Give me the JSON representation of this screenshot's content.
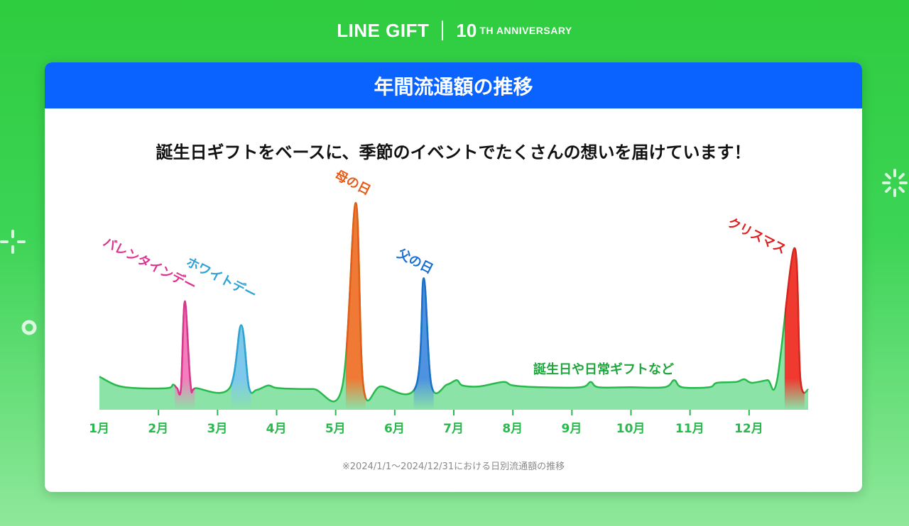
{
  "header": {
    "brand": "LINE GIFT",
    "anniversary_num": "10",
    "anniversary_text": "TH ANNIVERSARY"
  },
  "card": {
    "title": "年間流通額の推移",
    "subtitle": "誕生日ギフトをベースに、季節のイベントでたくさんの想いを届けています！",
    "note": "※2024/1/1～2024/12/31における日別流通額の推移"
  },
  "chart_data": {
    "type": "area",
    "title": "年間流通額の推移",
    "x_ticks": [
      "1月",
      "2月",
      "3月",
      "4月",
      "5月",
      "6月",
      "7月",
      "8月",
      "9月",
      "10月",
      "11月",
      "12月"
    ],
    "xlim": [
      "2024-01-01",
      "2024-12-31"
    ],
    "y_axis_shown": false,
    "series_points": [
      [
        "2024-01-01",
        15
      ],
      [
        "2024-01-10",
        5
      ],
      [
        "2024-01-20",
        2
      ],
      [
        "2024-02-05",
        2
      ],
      [
        "2024-02-08",
        6
      ],
      [
        "2024-02-10",
        2
      ],
      [
        "2024-02-12",
        2
      ],
      [
        "2024-02-14",
        100
      ],
      [
        "2024-02-17",
        5
      ],
      [
        "2024-02-20",
        2
      ],
      [
        "2024-03-08",
        2
      ],
      [
        "2024-03-14",
        73
      ],
      [
        "2024-03-18",
        3
      ],
      [
        "2024-03-22",
        0
      ],
      [
        "2024-03-28",
        5
      ],
      [
        "2024-04-02",
        2
      ],
      [
        "2024-04-20",
        1
      ],
      [
        "2024-05-05",
        3
      ],
      [
        "2024-05-12",
        211
      ],
      [
        "2024-05-16",
        3
      ],
      [
        "2024-05-25",
        4
      ],
      [
        "2024-06-12",
        4
      ],
      [
        "2024-06-16",
        126
      ],
      [
        "2024-06-20",
        5
      ],
      [
        "2024-06-28",
        6
      ],
      [
        "2024-07-03",
        11
      ],
      [
        "2024-07-06",
        5
      ],
      [
        "2024-07-15",
        4
      ],
      [
        "2024-07-27",
        9
      ],
      [
        "2024-08-01",
        5
      ],
      [
        "2024-08-15",
        3
      ],
      [
        "2024-09-05",
        3
      ],
      [
        "2024-09-10",
        9
      ],
      [
        "2024-09-14",
        3
      ],
      [
        "2024-09-30",
        3
      ],
      [
        "2024-10-18",
        3
      ],
      [
        "2024-10-23",
        11
      ],
      [
        "2024-10-27",
        3
      ],
      [
        "2024-11-10",
        3
      ],
      [
        "2024-11-14",
        8
      ],
      [
        "2024-11-24",
        9
      ],
      [
        "2024-11-28",
        12
      ],
      [
        "2024-12-02",
        8
      ],
      [
        "2024-12-10",
        11
      ],
      [
        "2024-12-15",
        11
      ],
      [
        "2024-12-24",
        160
      ],
      [
        "2024-12-27",
        12
      ],
      [
        "2024-12-31",
        0
      ]
    ],
    "annotations": [
      {
        "label": "バレンタインデー",
        "x": "2024-02-14",
        "color": "#e0338f",
        "fill": "#f57dbd"
      },
      {
        "label": "ホワイトデー",
        "x": "2024-03-14",
        "color": "#2fa2d8",
        "fill": "#7ec8ec"
      },
      {
        "label": "母の日",
        "x": "2024-05-12",
        "color": "#e85b16",
        "fill": "#f07a35"
      },
      {
        "label": "父の日",
        "x": "2024-06-16",
        "color": "#1a6fd1",
        "fill": "#4f93e0"
      },
      {
        "label": "クリスマス",
        "x": "2024-12-24",
        "color": "#e0201f",
        "fill": "#f03a30"
      },
      {
        "label": "誕生日や日常ギフトなど",
        "x": null,
        "color": "#1ea53c"
      }
    ],
    "colors": {
      "base_line": "#28b94d",
      "base_fill": "#8be3a8",
      "tick_label": "#28b94d"
    }
  }
}
